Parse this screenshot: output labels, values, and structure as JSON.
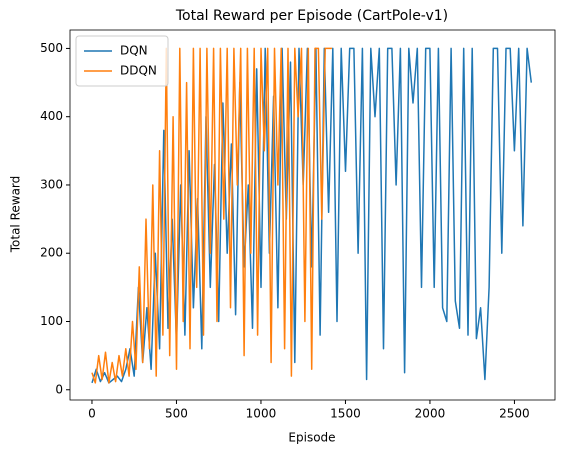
{
  "chart_data": {
    "type": "line",
    "title": "Total Reward per Episode (CartPole-v1)",
    "x_label": "Episode",
    "y_label": "Total Reward",
    "xlim": [
      -130,
      2740
    ],
    "ylim": [
      -15,
      527
    ],
    "xticks": [
      0,
      500,
      1000,
      1500,
      2000,
      2500
    ],
    "yticks": [
      0,
      100,
      200,
      300,
      400,
      500
    ],
    "legend": "upper left",
    "series": [
      {
        "name": "DQN",
        "color": "#1f77b4",
        "x": [
          0,
          25,
          50,
          75,
          100,
          125,
          150,
          175,
          200,
          225,
          250,
          275,
          300,
          325,
          350,
          375,
          400,
          425,
          450,
          475,
          500,
          525,
          550,
          575,
          600,
          625,
          650,
          675,
          700,
          725,
          750,
          775,
          800,
          825,
          850,
          875,
          900,
          925,
          950,
          975,
          1000,
          1025,
          1050,
          1075,
          1100,
          1125,
          1150,
          1175,
          1200,
          1225,
          1250,
          1275,
          1300,
          1325,
          1350,
          1375,
          1400,
          1425,
          1450,
          1475,
          1500,
          1525,
          1550,
          1575,
          1600,
          1625,
          1650,
          1675,
          1700,
          1725,
          1750,
          1775,
          1800,
          1825,
          1850,
          1875,
          1900,
          1925,
          1950,
          1975,
          2000,
          2025,
          2050,
          2075,
          2100,
          2125,
          2150,
          2175,
          2200,
          2225,
          2250,
          2275,
          2300,
          2325,
          2350,
          2375,
          2400,
          2425,
          2450,
          2475,
          2500,
          2525,
          2550,
          2575,
          2600
        ],
        "values": [
          10,
          30,
          12,
          25,
          10,
          15,
          20,
          12,
          30,
          60,
          20,
          150,
          40,
          120,
          30,
          200,
          60,
          380,
          90,
          250,
          70,
          300,
          80,
          350,
          120,
          280,
          60,
          400,
          150,
          330,
          100,
          420,
          200,
          360,
          110,
          450,
          180,
          300,
          90,
          470,
          150,
          500,
          200,
          430,
          120,
          500,
          250,
          480,
          40,
          500,
          300,
          500,
          180,
          500,
          80,
          500,
          260,
          500,
          100,
          500,
          320,
          500,
          500,
          200,
          500,
          15,
          500,
          400,
          500,
          60,
          500,
          500,
          300,
          500,
          25,
          500,
          420,
          500,
          150,
          500,
          500,
          150,
          500,
          120,
          100,
          500,
          130,
          90,
          500,
          80,
          500,
          75,
          120,
          15,
          150,
          500,
          500,
          200,
          500,
          500,
          350,
          500,
          240,
          500,
          450
        ]
      },
      {
        "name": "DDQN",
        "color": "#ff7f0e",
        "x": [
          0,
          20,
          40,
          60,
          80,
          100,
          120,
          140,
          160,
          180,
          200,
          220,
          240,
          260,
          280,
          300,
          320,
          340,
          360,
          380,
          400,
          420,
          440,
          460,
          480,
          500,
          520,
          540,
          560,
          580,
          600,
          620,
          640,
          660,
          680,
          700,
          720,
          740,
          760,
          780,
          800,
          820,
          840,
          860,
          880,
          900,
          920,
          940,
          960,
          980,
          1000,
          1020,
          1040,
          1060,
          1080,
          1100,
          1120,
          1140,
          1160,
          1180,
          1200,
          1220,
          1240,
          1260,
          1280,
          1300,
          1320,
          1340,
          1360,
          1380,
          1400,
          1420
        ],
        "values": [
          25,
          10,
          50,
          15,
          55,
          10,
          40,
          12,
          50,
          20,
          60,
          20,
          100,
          30,
          180,
          40,
          250,
          60,
          300,
          20,
          350,
          80,
          500,
          50,
          400,
          30,
          500,
          100,
          450,
          60,
          500,
          150,
          500,
          80,
          500,
          200,
          500,
          100,
          500,
          250,
          500,
          120,
          500,
          300,
          500,
          50,
          500,
          200,
          500,
          80,
          500,
          350,
          500,
          40,
          500,
          300,
          500,
          60,
          500,
          20,
          500,
          400,
          500,
          100,
          500,
          30,
          500,
          500,
          250,
          500,
          500,
          500
        ]
      }
    ]
  }
}
